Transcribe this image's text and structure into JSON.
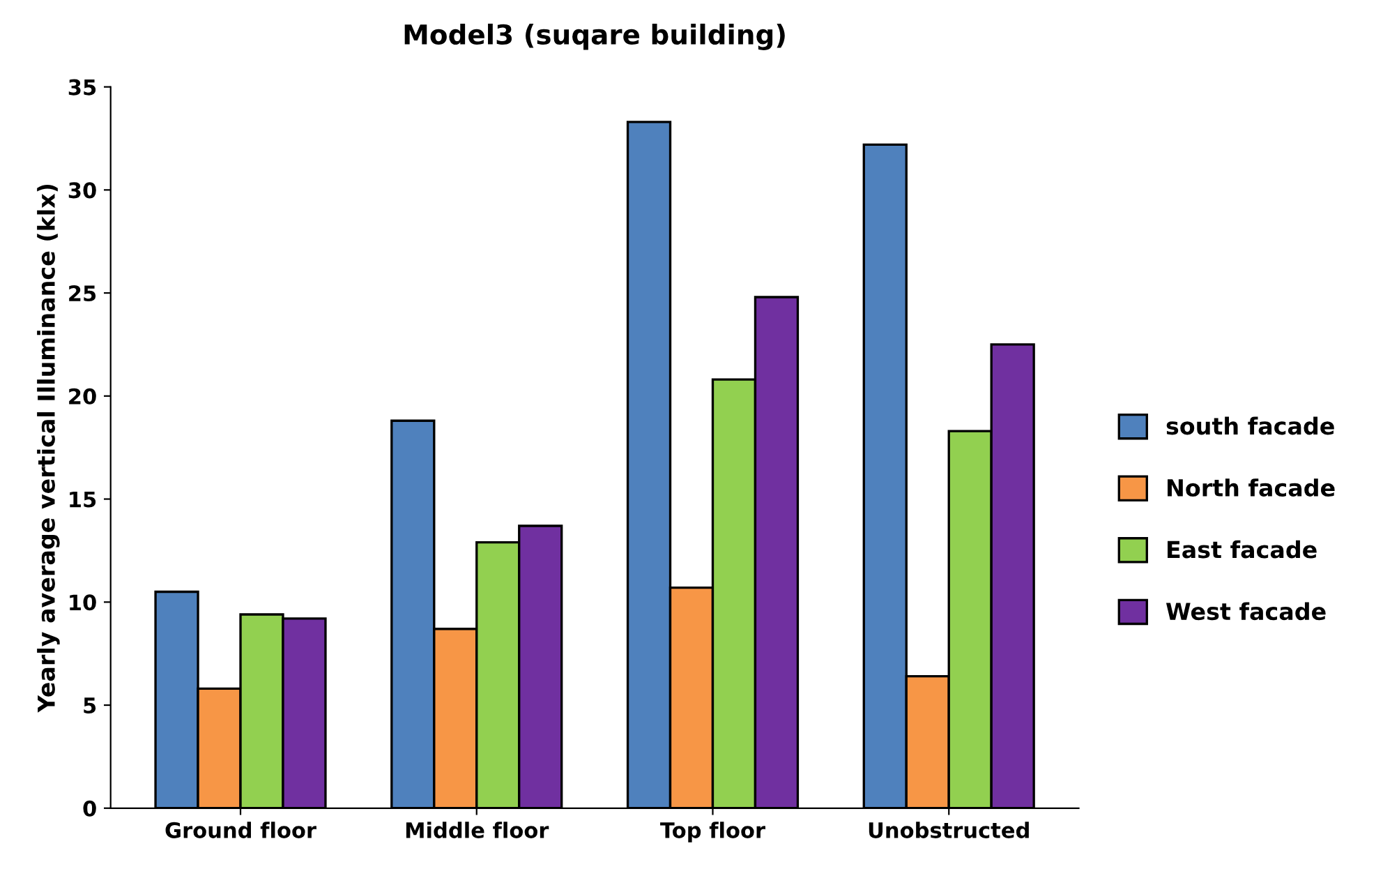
{
  "chart_data": {
    "type": "bar",
    "title": "Model3 (suqare building)",
    "ylabel": "Yearly average vertical Illuminance (klx)",
    "categories": [
      "Ground floor",
      "Middle floor",
      "Top floor",
      "Unobstructed"
    ],
    "series": [
      {
        "name": "south facade",
        "color": "#4f81bd",
        "values": [
          10.5,
          18.8,
          33.3,
          32.2
        ]
      },
      {
        "name": "North facade",
        "color": "#f79646",
        "values": [
          5.8,
          8.7,
          10.7,
          6.4
        ]
      },
      {
        "name": "East facade",
        "color": "#92d050",
        "values": [
          9.4,
          12.9,
          20.8,
          18.3
        ]
      },
      {
        "name": "West facade",
        "color": "#7030a0",
        "values": [
          9.2,
          13.7,
          24.8,
          22.5
        ]
      }
    ],
    "ylim": [
      0,
      35
    ],
    "yticks": [
      0,
      5,
      10,
      15,
      20,
      25,
      30,
      35
    ],
    "grid": false,
    "legend": "right"
  }
}
